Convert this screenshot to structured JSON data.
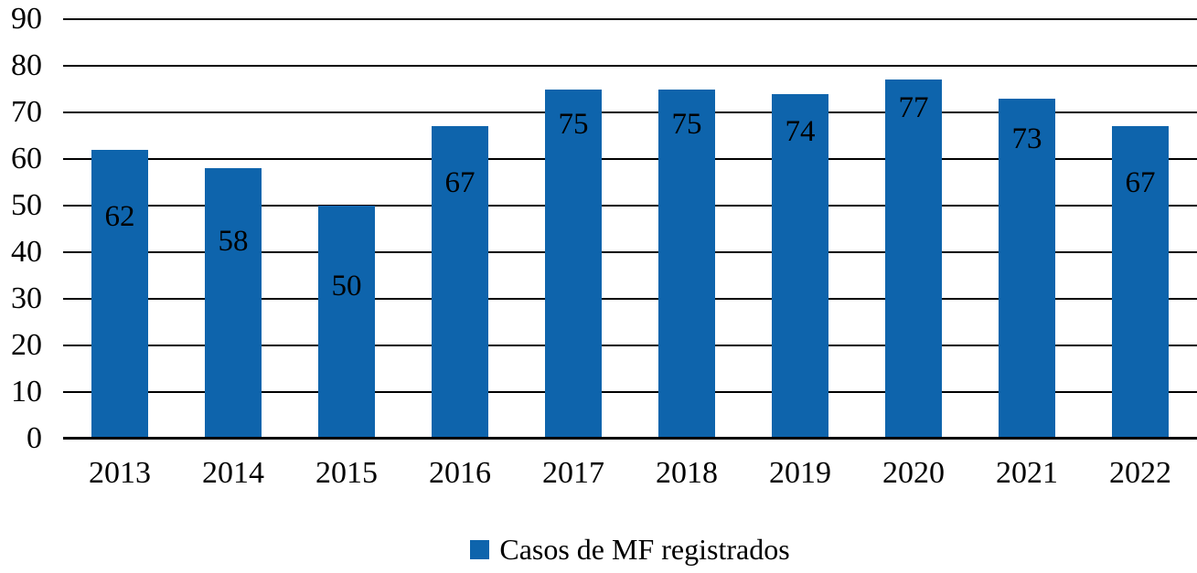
{
  "chart_data": {
    "type": "bar",
    "categories": [
      "2013",
      "2014",
      "2015",
      "2016",
      "2017",
      "2018",
      "2019",
      "2020",
      "2021",
      "2022"
    ],
    "series": [
      {
        "name": "Casos de MF registrados",
        "values": [
          62,
          58,
          50,
          67,
          75,
          75,
          74,
          77,
          73,
          67
        ],
        "color": "#0E64AC"
      }
    ],
    "title": "",
    "xlabel": "",
    "ylabel": "",
    "ylim": [
      0,
      90
    ],
    "yticks": [
      0,
      10,
      20,
      30,
      40,
      50,
      60,
      70,
      80,
      90
    ],
    "grid": true,
    "show_data_labels": true,
    "legend_position": "bottom",
    "gridline_color": "#000000",
    "text_color": "#000000",
    "background_color": "#FFFFFF"
  }
}
